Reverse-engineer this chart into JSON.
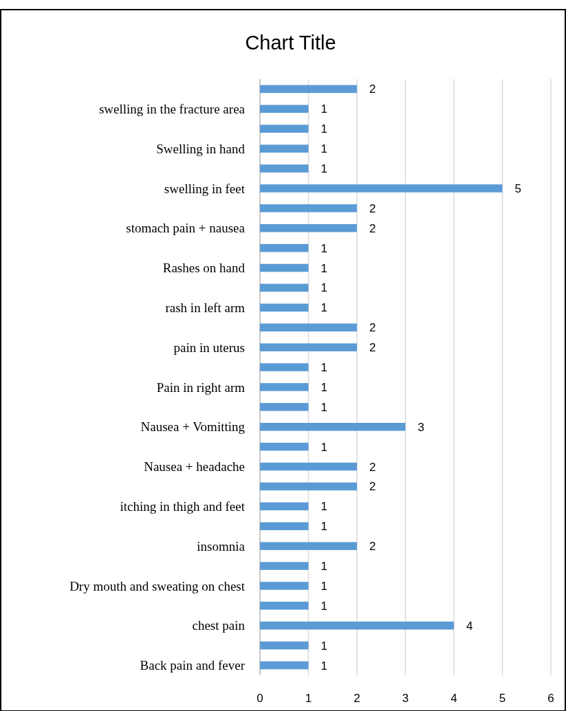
{
  "chart_data": {
    "type": "bar",
    "orientation": "horizontal",
    "title": "Chart Title",
    "categories": [
      null,
      "swelling in the fracture area",
      null,
      "Swelling in hand",
      null,
      "swelling in feet",
      null,
      "stomach pain + nausea",
      null,
      "Rashes on hand",
      null,
      "rash in left arm",
      null,
      "pain in uterus",
      null,
      "Pain in right arm",
      null,
      "Nausea + Vomitting",
      null,
      "Nausea + headache",
      null,
      "itching in thigh and feet",
      null,
      "insomnia",
      null,
      "Dry mouth and sweating on chest",
      null,
      "chest pain",
      null,
      "Back pain and fever"
    ],
    "values": [
      2,
      1,
      1,
      1,
      1,
      5,
      2,
      2,
      1,
      1,
      1,
      1,
      2,
      2,
      1,
      1,
      1,
      3,
      1,
      2,
      2,
      1,
      1,
      2,
      1,
      1,
      1,
      4,
      1,
      1
    ],
    "color": "#5b9bd5",
    "xlim": [
      0,
      6
    ],
    "xticks": [
      0,
      1,
      2,
      3,
      4,
      5,
      6
    ],
    "grid": "x",
    "data_labels": true
  }
}
